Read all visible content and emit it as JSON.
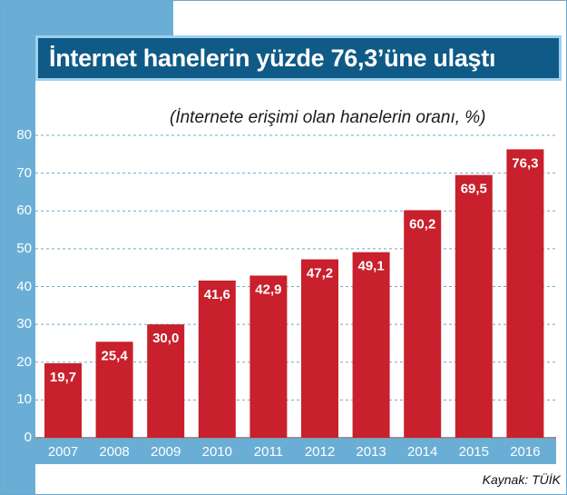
{
  "chart_data": {
    "type": "bar",
    "title": "İnternet hanelerin yüzde 76,3’üne ulaştı",
    "subtitle": "(İnternete erişimi olan hanelerin oranı, %)",
    "categories": [
      "2007",
      "2008",
      "2009",
      "2010",
      "2011",
      "2012",
      "2013",
      "2014",
      "2015",
      "2016"
    ],
    "values": [
      19.7,
      25.4,
      30.0,
      41.6,
      42.9,
      47.2,
      49.1,
      60.2,
      69.5,
      76.3
    ],
    "value_labels": [
      "19,7",
      "25,4",
      "30,0",
      "41,6",
      "42,9",
      "47,2",
      "49,1",
      "60,2",
      "69,5",
      "76,3"
    ],
    "yticks": [
      "0",
      "10",
      "20",
      "30",
      "40",
      "50",
      "60",
      "70",
      "80"
    ],
    "ylim": [
      0,
      80
    ],
    "grid": true,
    "xlabel": "",
    "ylabel": "",
    "source": "Kaynak: TÜİK",
    "colors": {
      "bar": "#c8202c",
      "accent": "#0f5a86",
      "panel": "#6aaed6",
      "grid": "#6fa8cc"
    }
  }
}
